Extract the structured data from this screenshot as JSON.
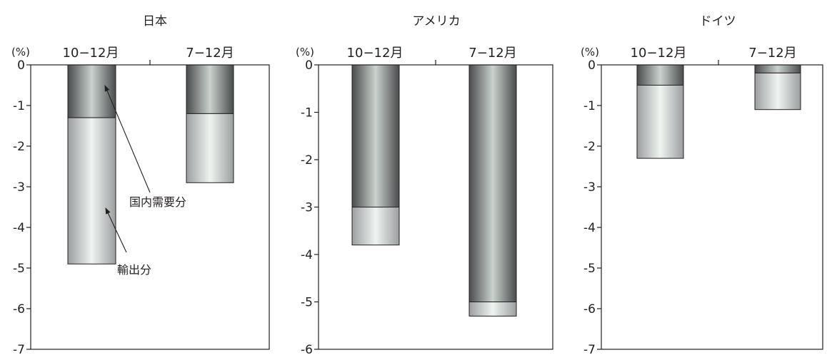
{
  "chart_data": [
    {
      "type": "bar",
      "stacked": true,
      "title": "日本",
      "unit_label": "(%)",
      "categories": [
        "10−12月",
        "7−12月"
      ],
      "series": [
        {
          "name": "国内需要分",
          "values": [
            -1.3,
            -1.2
          ],
          "color": "#5e6062"
        },
        {
          "name": "輸出分",
          "values": [
            -3.6,
            -1.7
          ],
          "color": "#b6b8ba"
        }
      ],
      "ylim": [
        -7,
        0
      ],
      "yticks": [
        "0",
        "-1",
        "-2",
        "-3",
        "-4",
        "-5",
        "-6",
        "-7"
      ],
      "annotations": [
        "国内需要分",
        "輸出分"
      ]
    },
    {
      "type": "bar",
      "stacked": true,
      "title": "アメリカ",
      "unit_label": "(%)",
      "categories": [
        "10−12月",
        "7−12月"
      ],
      "series": [
        {
          "values": [
            -3.0,
            -5.0
          ],
          "color": "#5e6062"
        },
        {
          "values": [
            -0.8,
            -0.3
          ],
          "color": "#b6b8ba"
        }
      ],
      "ylim": [
        -6,
        0
      ],
      "yticks": [
        "0",
        "-1",
        "-2",
        "-3",
        "-4",
        "-5",
        "-6"
      ]
    },
    {
      "type": "bar",
      "stacked": true,
      "title": "ドイツ",
      "unit_label": "(%)",
      "categories": [
        "10−12月",
        "7−12月"
      ],
      "series": [
        {
          "values": [
            -0.5,
            -0.2
          ],
          "color": "#5e6062"
        },
        {
          "values": [
            -1.8,
            -0.9
          ],
          "color": "#b6b8ba"
        }
      ],
      "ylim": [
        -7,
        0
      ],
      "yticks": [
        "0",
        "-1",
        "-2",
        "-3",
        "-4",
        "-5",
        "-6",
        "-7"
      ]
    }
  ]
}
